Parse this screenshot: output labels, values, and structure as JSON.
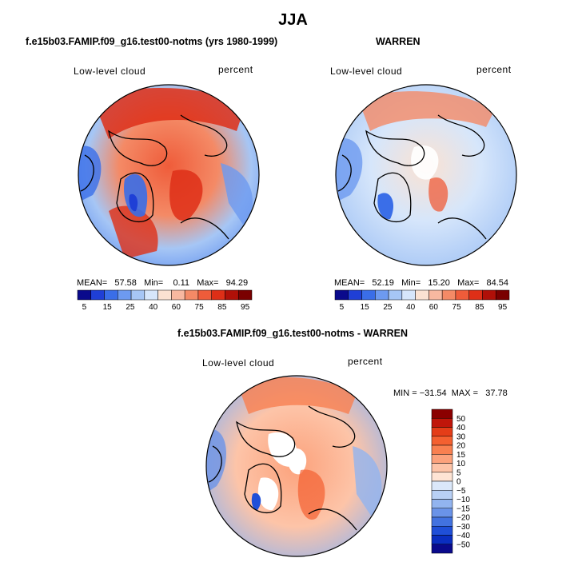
{
  "figure": {
    "title": "JJA"
  },
  "panels": {
    "left": {
      "title": "f.e15b03.FAMIP.f09_g16.test00-notms (yrs 1980-1999)",
      "variable": "Low-level cloud",
      "units": "percent",
      "stats": "MEAN=   57.58   Min=    0.11   Max=   94.29"
    },
    "right": {
      "title": "WARREN",
      "variable": "Low-level cloud",
      "units": "percent",
      "stats": "MEAN=   52.19   Min=   15.20   Max=   84.54"
    },
    "diff": {
      "title": "f.e15b03.FAMIP.f09_g16.test00-notms - WARREN",
      "variable": "Low-level cloud",
      "units": "percent",
      "stats": "MIN = −31.54  MAX =   37.78"
    }
  },
  "colorbars": {
    "absolute": {
      "labels": [
        "5",
        "15",
        "25",
        "40",
        "60",
        "75",
        "85",
        "95"
      ],
      "colors": [
        "#0a0a8c",
        "#1f3fd6",
        "#3a6ee8",
        "#6d9af0",
        "#a6c6f5",
        "#d6e6fb",
        "#fbe2d2",
        "#f8b8a0",
        "#f48a66",
        "#ef5c3a",
        "#de2f17",
        "#b01008",
        "#7a0000"
      ]
    },
    "difference": {
      "labels": [
        "50",
        "40",
        "30",
        "20",
        "15",
        "10",
        "5",
        "0",
        "−5",
        "−10",
        "−15",
        "−20",
        "−30",
        "−40",
        "−50"
      ],
      "colors": [
        "#8b0000",
        "#c0160a",
        "#e43d18",
        "#f46030",
        "#f98050",
        "#fca27c",
        "#fdc4a8",
        "#fee4d4",
        "#dbe8fa",
        "#b8d0f5",
        "#92b4ef",
        "#6a93e8",
        "#4272e0",
        "#1f4fd8",
        "#0a2ec0",
        "#0a0a8c"
      ]
    }
  }
}
